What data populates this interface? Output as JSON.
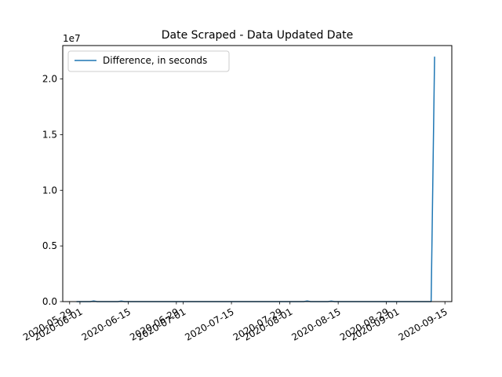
{
  "chart_data": {
    "type": "line",
    "title": "Date Scraped - Data Updated Date",
    "xlabel": "",
    "ylabel": "",
    "y_offset_label": "1e7",
    "y_scale_factor": 10000000,
    "xlim": [
      "2020-05-27",
      "2020-09-17"
    ],
    "ylim": [
      0,
      2.3
    ],
    "yticks": [
      0.0,
      0.5,
      1.0,
      1.5,
      2.0
    ],
    "ytick_labels": [
      "0.0",
      "0.5",
      "1.0",
      "1.5",
      "2.0"
    ],
    "xticks": [
      "2020-05-29",
      "2020-06-01",
      "2020-06-15",
      "2020-06-29",
      "2020-07-01",
      "2020-07-15",
      "2020-07-29",
      "2020-08-01",
      "2020-08-15",
      "2020-08-29",
      "2020-09-01",
      "2020-09-15"
    ],
    "grid": false,
    "legend_position": "top-left",
    "series": [
      {
        "name": "Difference, in seconds",
        "color": "#1f77b4",
        "x": [
          "2020-05-31",
          "2020-06-04",
          "2020-06-05",
          "2020-06-06",
          "2020-06-12",
          "2020-06-13",
          "2020-06-14",
          "2020-06-20",
          "2020-07-01",
          "2020-07-10",
          "2020-07-20",
          "2020-08-01",
          "2020-08-05",
          "2020-08-06",
          "2020-08-07",
          "2020-08-12",
          "2020-08-13",
          "2020-08-14",
          "2020-08-20",
          "2020-09-01",
          "2020-09-10",
          "2020-09-11",
          "2020-09-12"
        ],
        "y": [
          0,
          0,
          0.005,
          0,
          0,
          0.004,
          0,
          0,
          0,
          0,
          0,
          0,
          0,
          0.005,
          0,
          0,
          0.004,
          0,
          0,
          0,
          0,
          0,
          2.2
        ]
      }
    ]
  }
}
